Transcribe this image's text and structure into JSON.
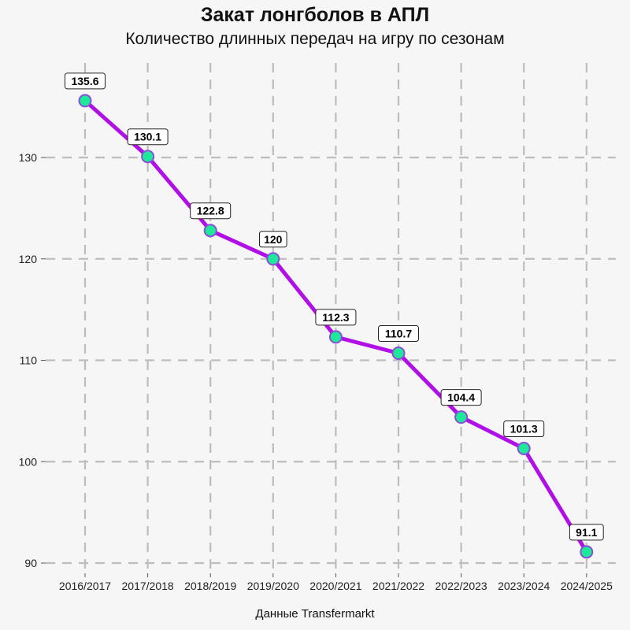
{
  "title": "Закат лонгболов в АПЛ",
  "subtitle": "Количество длинных передач на игру по сезонам",
  "caption": "Данные Transfermarkt",
  "colors": {
    "line": "#b010e6",
    "marker_fill": "#1ee89a",
    "marker_stroke": "#8a4fd8",
    "grid": "#bdbdbd",
    "background": "#f6f6f6"
  },
  "chart_data": {
    "type": "line",
    "categories": [
      "2016/2017",
      "2017/2018",
      "2018/2019",
      "2019/2020",
      "2020/2021",
      "2021/2022",
      "2022/2023",
      "2023/2024",
      "2024/2025"
    ],
    "values": [
      135.6,
      130.1,
      122.8,
      120,
      112.3,
      110.7,
      104.4,
      101.3,
      91.1
    ],
    "data_labels": [
      "135.6",
      "130.1",
      "122.8",
      "120",
      "112.3",
      "110.7",
      "104.4",
      "101.3",
      "91.1"
    ],
    "title": "Закат лонгболов в АПЛ",
    "subtitle": "Количество длинных передач на игру по сезонам",
    "xlabel": "",
    "ylabel": "",
    "yticks": [
      90,
      100,
      110,
      120,
      130
    ],
    "ylim": [
      89.9,
      136.7
    ],
    "grid": true,
    "grid_style": "dashed",
    "legend": "none"
  }
}
